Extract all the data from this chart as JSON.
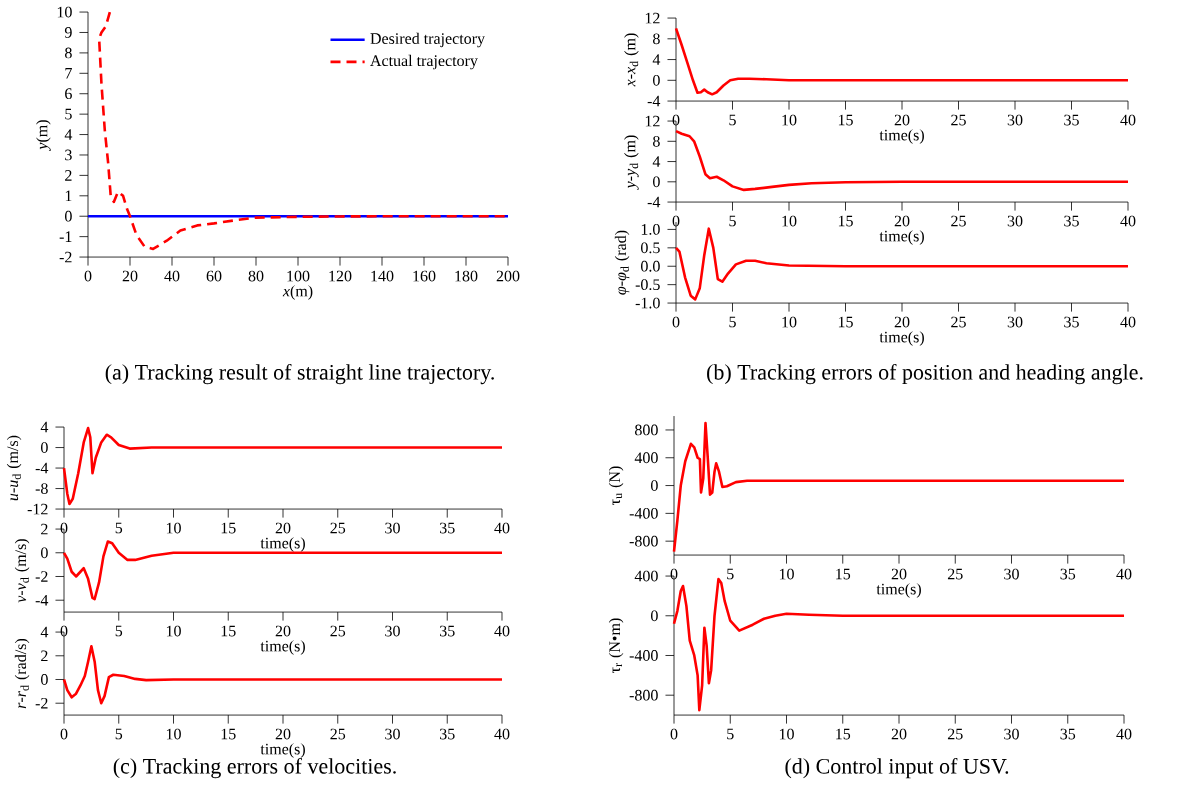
{
  "chart_data": [
    {
      "type": "line",
      "xlabel": "*x*(m)",
      "ylabel": "*y*(m)",
      "xlim": [
        0,
        200
      ],
      "ylim": [
        -2,
        10
      ],
      "xticks": [
        0,
        20,
        40,
        60,
        80,
        100,
        120,
        140,
        160,
        180,
        200
      ],
      "yticks": [
        -2,
        -1,
        0,
        1,
        2,
        3,
        4,
        5,
        6,
        7,
        8,
        9,
        10
      ],
      "legend": "top right",
      "annotations": [
        "(a) Tracking result of straight line trajectory."
      ],
      "series": [
        {
          "name": "Desired trajectory",
          "color": "#0000ff",
          "line_style": "solid",
          "x": [
            0,
            200
          ],
          "values": [
            0,
            0
          ]
        },
        {
          "name": "Actual trajectory",
          "color": "#ff0000",
          "line_style": "dashed",
          "x": [
            10.4,
            8.5,
            6.4,
            5.3,
            6.4,
            8,
            9.6,
            10.8,
            12.3,
            14.3,
            16.7,
            18.6,
            20,
            23,
            27,
            31,
            37.5,
            44,
            52,
            60,
            70,
            80,
            100,
            120,
            150,
            200
          ],
          "values": [
            10,
            9.3,
            9.0,
            8.7,
            6.5,
            4.2,
            2.6,
            1.0,
            0.7,
            1.2,
            1.0,
            0.35,
            0,
            -0.9,
            -1.5,
            -1.6,
            -1.2,
            -0.7,
            -0.45,
            -0.35,
            -0.2,
            -0.07,
            -0.03,
            -0.01,
            0,
            0
          ]
        }
      ]
    },
    {
      "type": "line",
      "xlabel": "time(s)",
      "ylabel": "*x*-*x*$_{d}$ (m)",
      "xlim": [
        0,
        40
      ],
      "ylim": [
        -4,
        12
      ],
      "xticks": [
        0,
        5,
        10,
        15,
        20,
        25,
        30,
        35,
        40
      ],
      "yticks": [
        -4,
        0,
        4,
        8,
        12
      ],
      "series": [
        {
          "color": "#ff0000",
          "x": [
            0,
            0.5,
            1,
            1.5,
            1.9,
            2.2,
            2.5,
            2.8,
            3.2,
            3.6,
            4.2,
            4.8,
            5.5,
            6.5,
            8,
            10,
            20,
            40
          ],
          "values": [
            10,
            6.8,
            3.4,
            0,
            -2.4,
            -2.3,
            -1.8,
            -2.3,
            -2.7,
            -2.3,
            -1,
            0,
            0.3,
            0.3,
            0.2,
            0,
            0,
            0
          ]
        }
      ]
    },
    {
      "type": "line",
      "xlabel": "time(s)",
      "ylabel": "*y*-*y*$_{d}$ (m)",
      "xlim": [
        0,
        40
      ],
      "ylim": [
        -4,
        12
      ],
      "xticks": [
        0,
        5,
        10,
        15,
        20,
        25,
        30,
        35,
        40
      ],
      "yticks": [
        -4,
        0,
        4,
        8,
        12
      ],
      "series": [
        {
          "color": "#ff0000",
          "x": [
            0,
            0.5,
            1.2,
            1.6,
            2.1,
            2.6,
            3,
            3.6,
            4.2,
            5,
            6,
            7,
            8.5,
            10,
            12,
            15,
            20,
            40
          ],
          "values": [
            10,
            9.5,
            9,
            8,
            5,
            1.5,
            0.7,
            1.0,
            0.3,
            -0.9,
            -1.6,
            -1.4,
            -1.0,
            -0.6,
            -0.3,
            -0.1,
            0,
            0
          ]
        }
      ]
    },
    {
      "type": "line",
      "xlabel": "time(s)",
      "ylabel": "*φ*-*φ*$_{d}$ (rad)",
      "xlim": [
        0,
        40
      ],
      "ylim": [
        -1,
        1.2
      ],
      "xticks": [
        0,
        5,
        10,
        15,
        20,
        25,
        30,
        35,
        40
      ],
      "yticks": [
        {
          "value": -1,
          "label": "-1.0"
        },
        -0.5,
        {
          "value": 0,
          "label": "0.0"
        },
        0.5,
        {
          "value": 1,
          "label": "1.0"
        }
      ],
      "annotations": [
        "(b) Tracking errors of position and heading angle."
      ],
      "series": [
        {
          "color": "#ff0000",
          "x": [
            0,
            0.3,
            0.8,
            1.3,
            1.7,
            2.1,
            2.5,
            2.9,
            3.3,
            3.7,
            4.1,
            4.6,
            5.3,
            6.2,
            7,
            8,
            10,
            15,
            40
          ],
          "values": [
            0.5,
            0.4,
            -0.3,
            -0.8,
            -0.9,
            -0.6,
            0.3,
            1.02,
            0.5,
            -0.35,
            -0.42,
            -0.2,
            0.05,
            0.15,
            0.15,
            0.08,
            0.02,
            0,
            0
          ]
        }
      ]
    },
    {
      "type": "line",
      "xlabel": "time(s)",
      "ylabel": "*u*-*u*$_{d}$ (m/s)",
      "xlim": [
        0,
        40
      ],
      "ylim": [
        -12,
        4
      ],
      "xticks": [
        0,
        5,
        10,
        15,
        20,
        25,
        30,
        35,
        40
      ],
      "yticks": [
        -12,
        -8,
        -4,
        0,
        4
      ],
      "series": [
        {
          "color": "#ff0000",
          "x": [
            0,
            0.3,
            0.5,
            0.8,
            1.3,
            1.8,
            2.2,
            2.4,
            2.6,
            2.9,
            3.4,
            3.9,
            4.3,
            5,
            6,
            8,
            40
          ],
          "values": [
            -4,
            -9,
            -11,
            -10,
            -5,
            1,
            3.8,
            2,
            -5,
            -2,
            1,
            2.5,
            2,
            0.5,
            -0.2,
            0,
            0
          ]
        }
      ]
    },
    {
      "type": "line",
      "xlabel": "time(s)",
      "ylabel": "*v*-*v*$_{d}$ (m/s)",
      "xlim": [
        0,
        40
      ],
      "ylim": [
        -5,
        2
      ],
      "xticks": [
        0,
        5,
        10,
        15,
        20,
        25,
        30,
        35,
        40
      ],
      "yticks": [
        -4,
        -2,
        0,
        2
      ],
      "series": [
        {
          "color": "#ff0000",
          "x": [
            0,
            0.3,
            0.7,
            1.1,
            1.5,
            1.8,
            2.2,
            2.6,
            2.8,
            3.2,
            3.6,
            4,
            4.4,
            5,
            5.8,
            6.5,
            8,
            10,
            40
          ],
          "values": [
            0,
            -0.5,
            -1.6,
            -2,
            -1.6,
            -1.3,
            -2.2,
            -3.8,
            -3.9,
            -2.5,
            -0.3,
            0.95,
            0.8,
            0,
            -0.6,
            -0.6,
            -0.25,
            0,
            0
          ]
        }
      ]
    },
    {
      "type": "line",
      "xlabel": "time(s)",
      "ylabel": "*r*-*r*$_{d}$ (rad/s)",
      "xlim": [
        0,
        40
      ],
      "ylim": [
        -3,
        4
      ],
      "xticks": [
        0,
        5,
        10,
        15,
        20,
        25,
        30,
        35,
        40
      ],
      "yticks": [
        -2,
        0,
        2,
        4
      ],
      "annotations": [
        "(c) Tracking errors of velocities."
      ],
      "series": [
        {
          "color": "#ff0000",
          "x": [
            0,
            0.3,
            0.7,
            1.1,
            1.5,
            1.9,
            2.2,
            2.5,
            2.8,
            3.1,
            3.4,
            3.7,
            4.1,
            4.5,
            5.5,
            6.5,
            7.5,
            10,
            40
          ],
          "values": [
            0,
            -0.9,
            -1.5,
            -1.2,
            -0.5,
            0.3,
            1.5,
            2.8,
            1.5,
            -0.9,
            -2.0,
            -1.4,
            0.2,
            0.4,
            0.3,
            0.05,
            -0.05,
            0,
            0
          ]
        }
      ]
    },
    {
      "type": "line",
      "xlabel": "time(s)",
      "ylabel": "τ$_{u}$ (N)",
      "xlim": [
        0,
        40
      ],
      "ylim": [
        -1000,
        1000
      ],
      "xticks": [
        0,
        5,
        10,
        15,
        20,
        25,
        30,
        35,
        40
      ],
      "yticks": [
        -800,
        -400,
        0,
        400,
        800
      ],
      "series": [
        {
          "color": "#ff0000",
          "x": [
            0,
            0.3,
            0.6,
            1,
            1.5,
            1.8,
            2.1,
            2.3,
            2.4,
            2.6,
            2.8,
            3,
            3.2,
            3.4,
            3.6,
            3.75,
            4,
            4.3,
            4.7,
            5.5,
            6.5,
            40
          ],
          "values": [
            -950,
            -500,
            0,
            350,
            600,
            550,
            400,
            380,
            -100,
            100,
            900,
            400,
            -130,
            -100,
            200,
            320,
            200,
            -20,
            -10,
            50,
            70,
            70
          ]
        }
      ]
    },
    {
      "type": "line",
      "ylabel": "τ$_{r}$ (N•m)",
      "xlim": [
        0,
        40
      ],
      "ylim": [
        -1000,
        400
      ],
      "xticks": [
        0,
        5,
        10,
        15,
        20,
        25,
        30,
        35,
        40
      ],
      "yticks": [
        -800,
        -400,
        0,
        400
      ],
      "annotations": [
        "(d) Control input of USV."
      ],
      "series": [
        {
          "color": "#ff0000",
          "x": [
            0,
            0.3,
            0.6,
            0.8,
            1.1,
            1.4,
            1.8,
            2.1,
            2.25,
            2.5,
            2.7,
            2.9,
            3.1,
            3.3,
            3.6,
            3.95,
            4.2,
            4.5,
            5,
            5.8,
            7,
            8,
            9,
            10,
            12,
            15,
            40
          ],
          "values": [
            -80,
            50,
            250,
            300,
            100,
            -250,
            -400,
            -600,
            -950,
            -700,
            -120,
            -300,
            -680,
            -550,
            0,
            370,
            330,
            150,
            -50,
            -150,
            -90,
            -30,
            0,
            20,
            10,
            0,
            0
          ]
        }
      ]
    }
  ]
}
